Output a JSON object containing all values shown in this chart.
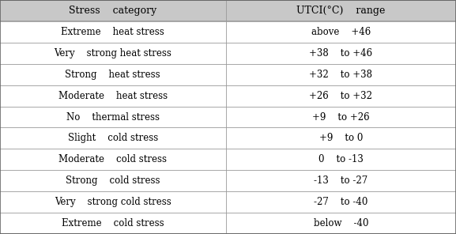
{
  "headers": [
    "Stress    category",
    "UTCI(°C)    range"
  ],
  "rows": [
    [
      "Extreme    heat stress",
      "above    +46"
    ],
    [
      "Very    strong heat stress",
      "+38    to +46"
    ],
    [
      "Strong    heat stress",
      "+32    to +38"
    ],
    [
      "Moderate    heat stress",
      "+26    to +32"
    ],
    [
      "No    thermal stress",
      "+9    to +26"
    ],
    [
      "Slight    cold stress",
      "+9    to 0"
    ],
    [
      "Moderate    cold stress",
      "0    to -13"
    ],
    [
      "Strong    cold stress",
      "-13    to -27"
    ],
    [
      "Very    strong cold stress",
      "-27    to -40"
    ],
    [
      "Extreme    cold stress",
      "below    -40"
    ]
  ],
  "header_bg": "#c8c8c8",
  "row_bg": "#ffffff",
  "border_color": "#666666",
  "text_color": "#000000",
  "font_size": 8.5,
  "header_font_size": 9.0,
  "col_split": 0.495,
  "fig_width": 5.77,
  "fig_height": 2.96,
  "dpi": 100
}
